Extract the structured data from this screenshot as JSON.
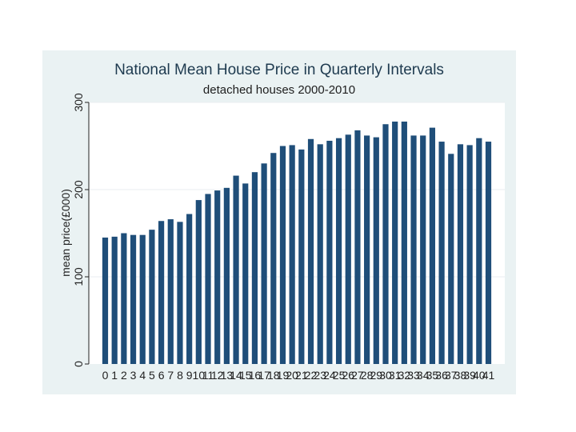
{
  "chart_data": {
    "type": "bar",
    "title": "National Mean House Price in Quarterly Intervals",
    "subtitle": "detached houses 2000-2010",
    "xlabel": "",
    "ylabel": "mean price(£000)",
    "ylim": [
      0,
      300
    ],
    "yticks": [
      0,
      100,
      200,
      300
    ],
    "grid": true,
    "categories": [
      "0",
      "1",
      "2",
      "3",
      "4",
      "5",
      "6",
      "7",
      "8",
      "9",
      "10",
      "11",
      "12",
      "13",
      "14",
      "15",
      "16",
      "17",
      "18",
      "19",
      "20",
      "21",
      "22",
      "23",
      "24",
      "25",
      "26",
      "27",
      "28",
      "29",
      "30",
      "31",
      "32",
      "33",
      "34",
      "35",
      "36",
      "37",
      "38",
      "39",
      "40",
      "41"
    ],
    "values": [
      145,
      146,
      150,
      148,
      148,
      154,
      164,
      166,
      163,
      172,
      188,
      195,
      199,
      202,
      216,
      207,
      220,
      230,
      242,
      250,
      251,
      246,
      258,
      252,
      256,
      259,
      263,
      268,
      262,
      260,
      275,
      278,
      278,
      262,
      262,
      271,
      255,
      241,
      252,
      251,
      259,
      255
    ],
    "colors": {
      "bar": "#1f4e79",
      "frame": "#eaf2f3",
      "plot": "#ffffff",
      "grid": "#e9eef1",
      "axis": "#222222",
      "text": "#222222",
      "title": "#1e3a4f"
    }
  }
}
